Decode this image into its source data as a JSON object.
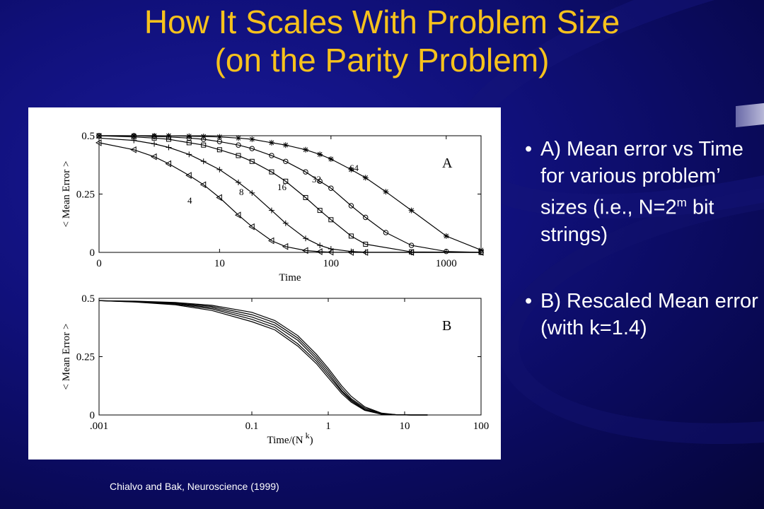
{
  "slide": {
    "title_line1": "How It Scales With Problem Size",
    "title_line2": "(on the Parity Problem)",
    "bullets": [
      {
        "prefix": "A) Mean error vs Time for various problem’ sizes (i.e., N=2",
        "sup": "m",
        "suffix": " bit strings)"
      },
      {
        "prefix": "B) Rescaled Mean error (with k=1.4)",
        "sup": "",
        "suffix": ""
      }
    ],
    "bullet_char": "•",
    "citation": "Chialvo and Bak, Neuroscience (1999)",
    "colors": {
      "title": "#f7c21c",
      "text": "#ffffff",
      "background": "#10107a"
    }
  },
  "chart_data": [
    {
      "type": "line",
      "panel_label": "A",
      "xlabel": "Time",
      "ylabel": "< Mean Error >",
      "x_scale": "log(1+t)",
      "xticks": [
        0,
        10,
        100,
        1000
      ],
      "xtick_labels": [
        "0",
        "10",
        "100",
        "1000"
      ],
      "yticks": [
        0,
        0.25,
        0.5
      ],
      "ytick_labels": [
        "0",
        "0.25",
        "0.5"
      ],
      "ylim": [
        0,
        0.5
      ],
      "series": [
        {
          "name": "4",
          "marker": "triangle-left",
          "x": [
            0,
            1,
            2,
            3,
            5,
            7,
            10,
            15,
            20,
            30,
            40,
            60,
            80,
            100,
            150,
            200,
            500,
            2000
          ],
          "y": [
            0.47,
            0.44,
            0.41,
            0.38,
            0.33,
            0.29,
            0.235,
            0.16,
            0.11,
            0.05,
            0.025,
            0.008,
            0.003,
            0.001,
            0,
            0,
            0,
            0
          ]
        },
        {
          "name": "8",
          "marker": "plus",
          "x": [
            0,
            1,
            2,
            3,
            5,
            7,
            10,
            15,
            20,
            30,
            40,
            60,
            80,
            100,
            150,
            200,
            500,
            2000
          ],
          "y": [
            0.49,
            0.48,
            0.465,
            0.45,
            0.42,
            0.39,
            0.355,
            0.3,
            0.255,
            0.18,
            0.125,
            0.06,
            0.03,
            0.015,
            0.004,
            0.001,
            0,
            0
          ]
        },
        {
          "name": "16",
          "marker": "square",
          "x": [
            0,
            1,
            2,
            3,
            5,
            7,
            10,
            15,
            20,
            30,
            40,
            60,
            80,
            100,
            150,
            200,
            500,
            2000
          ],
          "y": [
            0.5,
            0.495,
            0.49,
            0.485,
            0.47,
            0.46,
            0.44,
            0.415,
            0.39,
            0.345,
            0.305,
            0.235,
            0.18,
            0.14,
            0.07,
            0.035,
            0.002,
            0
          ]
        },
        {
          "name": "32",
          "marker": "circle",
          "x": [
            0,
            1,
            2,
            3,
            5,
            7,
            10,
            15,
            20,
            30,
            40,
            60,
            80,
            100,
            150,
            200,
            300,
            500,
            1000,
            2000
          ],
          "y": [
            0.5,
            0.5,
            0.497,
            0.495,
            0.49,
            0.485,
            0.475,
            0.46,
            0.445,
            0.415,
            0.39,
            0.345,
            0.305,
            0.275,
            0.2,
            0.15,
            0.085,
            0.03,
            0.004,
            0
          ]
        },
        {
          "name": "64",
          "marker": "star",
          "x": [
            0,
            1,
            2,
            3,
            5,
            7,
            10,
            15,
            20,
            30,
            40,
            60,
            80,
            100,
            150,
            200,
            300,
            500,
            1000,
            2000
          ],
          "y": [
            0.5,
            0.5,
            0.5,
            0.5,
            0.498,
            0.497,
            0.495,
            0.49,
            0.485,
            0.47,
            0.46,
            0.44,
            0.42,
            0.4,
            0.355,
            0.32,
            0.26,
            0.18,
            0.07,
            0.01
          ]
        }
      ]
    },
    {
      "type": "line",
      "panel_label": "B",
      "xlabel": "Time/(N",
      "xlabel_sup": "k",
      "xlabel_close": ")",
      "ylabel": "< Mean Error >",
      "x_scale": "log",
      "xlim": [
        0.001,
        100
      ],
      "xticks": [
        0.001,
        0.1,
        1,
        10,
        100
      ],
      "xtick_labels": [
        ".001",
        "0.1",
        "1",
        "10",
        "100"
      ],
      "yticks": [
        0,
        0.25,
        0.5
      ],
      "ytick_labels": [
        "0",
        "0.25",
        "0.5"
      ],
      "ylim": [
        0,
        0.5
      ],
      "series": [
        {
          "x": [
            0.001,
            0.003,
            0.01,
            0.03,
            0.1,
            0.2,
            0.4,
            0.7,
            1,
            1.5,
            2,
            3,
            5,
            8,
            12,
            20
          ],
          "y": [
            0.49,
            0.488,
            0.482,
            0.47,
            0.44,
            0.405,
            0.34,
            0.26,
            0.2,
            0.125,
            0.08,
            0.035,
            0.008,
            0.001,
            0,
            0
          ]
        },
        {
          "x": [
            0.001,
            0.003,
            0.01,
            0.03,
            0.1,
            0.2,
            0.4,
            0.7,
            1,
            1.5,
            2,
            3,
            5,
            8,
            12,
            20
          ],
          "y": [
            0.49,
            0.487,
            0.48,
            0.465,
            0.43,
            0.395,
            0.33,
            0.25,
            0.19,
            0.115,
            0.07,
            0.03,
            0.006,
            0.001,
            0,
            0
          ]
        },
        {
          "x": [
            0.001,
            0.003,
            0.01,
            0.03,
            0.1,
            0.2,
            0.4,
            0.7,
            1,
            1.5,
            2,
            3,
            5,
            8,
            12,
            20
          ],
          "y": [
            0.49,
            0.486,
            0.478,
            0.46,
            0.42,
            0.385,
            0.32,
            0.24,
            0.18,
            0.105,
            0.065,
            0.025,
            0.005,
            0.001,
            0,
            0
          ]
        },
        {
          "x": [
            0.001,
            0.003,
            0.01,
            0.03,
            0.1,
            0.2,
            0.4,
            0.7,
            1,
            1.5,
            2,
            3,
            5,
            8,
            12,
            20
          ],
          "y": [
            0.49,
            0.485,
            0.475,
            0.455,
            0.41,
            0.375,
            0.305,
            0.23,
            0.17,
            0.1,
            0.06,
            0.022,
            0.004,
            0.001,
            0,
            0
          ]
        },
        {
          "x": [
            0.001,
            0.003,
            0.01,
            0.03,
            0.1,
            0.2,
            0.4,
            0.7,
            1,
            1.5,
            2,
            3,
            5,
            8,
            12,
            20
          ],
          "y": [
            0.49,
            0.484,
            0.472,
            0.448,
            0.4,
            0.365,
            0.295,
            0.22,
            0.16,
            0.092,
            0.055,
            0.02,
            0.003,
            0,
            0,
            0
          ]
        }
      ]
    }
  ]
}
